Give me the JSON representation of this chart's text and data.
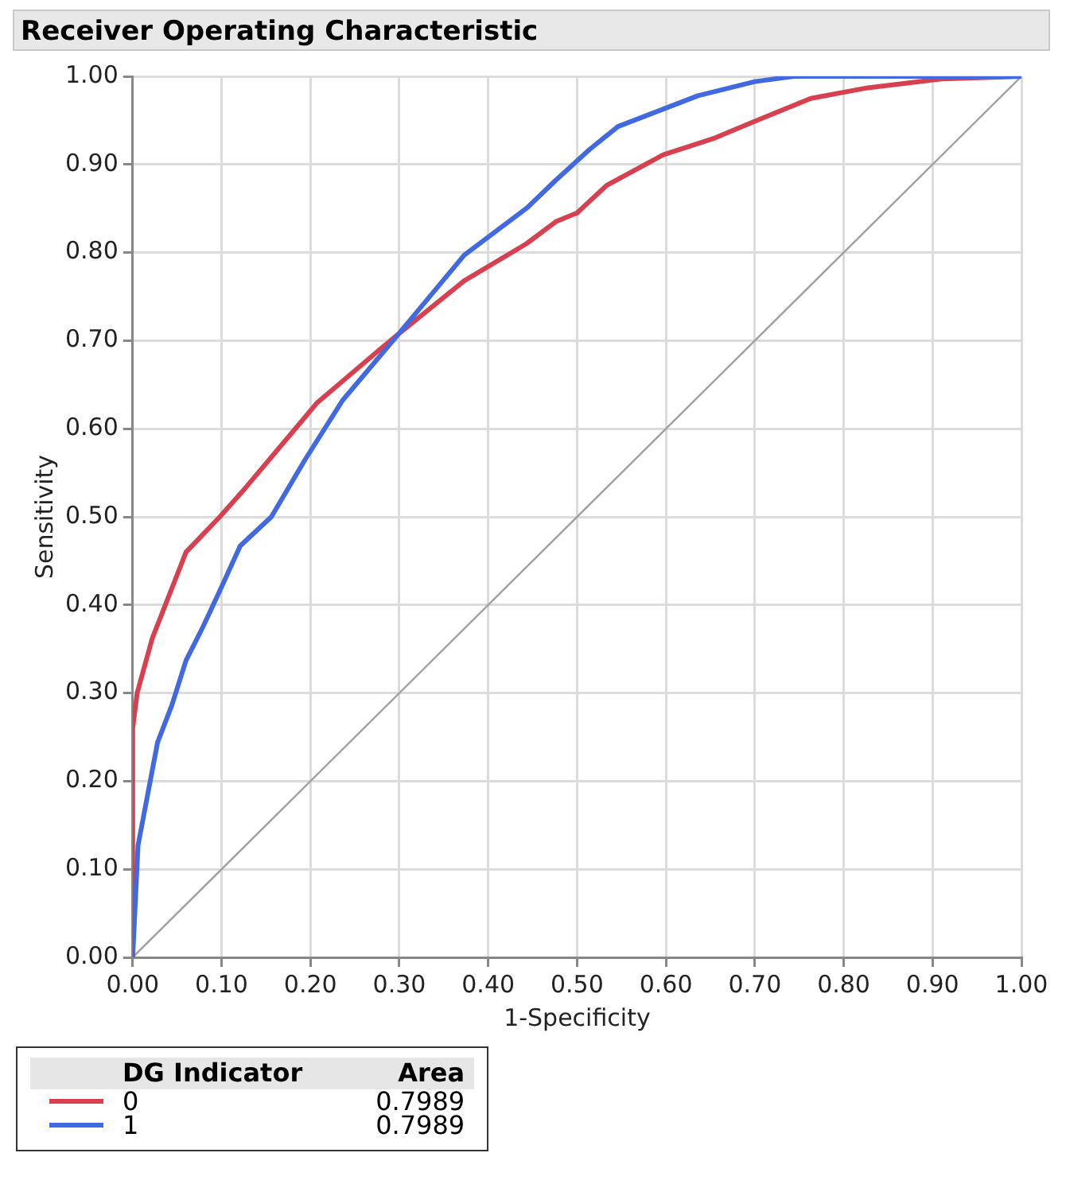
{
  "chart_data": {
    "type": "line",
    "title": "Receiver Operating Characteristic",
    "xlabel": "1-Specificity",
    "ylabel": "Sensitivity",
    "legend_title": "DG Indicator",
    "annotations": [
      "Area",
      "0.7989",
      "0.7989"
    ],
    "series": [
      {
        "name": "0",
        "color": "#d9404f",
        "x": [
          0,
          0,
          0.005,
          0.022,
          0.06,
          0.098,
          0.127,
          0.188,
          0.207,
          0.277,
          0.296,
          0.373,
          0.443,
          0.476,
          0.5,
          0.533,
          0.597,
          0.655,
          0.7,
          0.763,
          0.827,
          0.91,
          1
        ],
        "values": [
          0,
          0.26,
          0.3,
          0.362,
          0.46,
          0.5,
          0.533,
          0.606,
          0.629,
          0.689,
          0.705,
          0.768,
          0.81,
          0.835,
          0.845,
          0.876,
          0.911,
          0.93,
          0.949,
          0.975,
          0.987,
          0.997,
          1
        ]
      },
      {
        "name": "1",
        "color": "#4169e1",
        "x": [
          0,
          0.006,
          0.028,
          0.044,
          0.06,
          0.079,
          0.098,
          0.121,
          0.156,
          0.194,
          0.236,
          0.297,
          0.373,
          0.444,
          0.476,
          0.514,
          0.546,
          0.636,
          0.7,
          0.744,
          1
        ],
        "values": [
          0,
          0.127,
          0.244,
          0.286,
          0.337,
          0.375,
          0.416,
          0.467,
          0.5,
          0.565,
          0.632,
          0.705,
          0.797,
          0.851,
          0.882,
          0.917,
          0.943,
          0.978,
          0.994,
          1,
          1
        ]
      },
      {
        "type": "line",
        "color": "#a0a0a0",
        "x": [
          0,
          1
        ],
        "values": [
          0,
          1
        ]
      }
    ],
    "xlim": [
      0,
      1
    ],
    "ylim": [
      0,
      1
    ],
    "xticks": [
      {
        "value": 0,
        "label": "0.00"
      },
      {
        "value": 0.1,
        "label": "0.10"
      },
      {
        "value": 0.2,
        "label": "0.20"
      },
      {
        "value": 0.3,
        "label": "0.30"
      },
      {
        "value": 0.4,
        "label": "0.40"
      },
      {
        "value": 0.5,
        "label": "0.50"
      },
      {
        "value": 0.6,
        "label": "0.60"
      },
      {
        "value": 0.7,
        "label": "0.70"
      },
      {
        "value": 0.8,
        "label": "0.80"
      },
      {
        "value": 0.9,
        "label": "0.90"
      },
      {
        "value": 1,
        "label": "1.00"
      }
    ],
    "yticks": [
      {
        "value": 0,
        "label": "0.00"
      },
      {
        "value": 0.1,
        "label": "0.10"
      },
      {
        "value": 0.2,
        "label": "0.20"
      },
      {
        "value": 0.3,
        "label": "0.30"
      },
      {
        "value": 0.4,
        "label": "0.40"
      },
      {
        "value": 0.5,
        "label": "0.50"
      },
      {
        "value": 0.6,
        "label": "0.60"
      },
      {
        "value": 0.7,
        "label": "0.70"
      },
      {
        "value": 0.8,
        "label": "0.80"
      },
      {
        "value": 0.9,
        "label": "0.90"
      },
      {
        "value": 1,
        "label": "1.00"
      }
    ],
    "grid": true,
    "legend": "bottom",
    "marker": "none",
    "line_style": "solid"
  }
}
